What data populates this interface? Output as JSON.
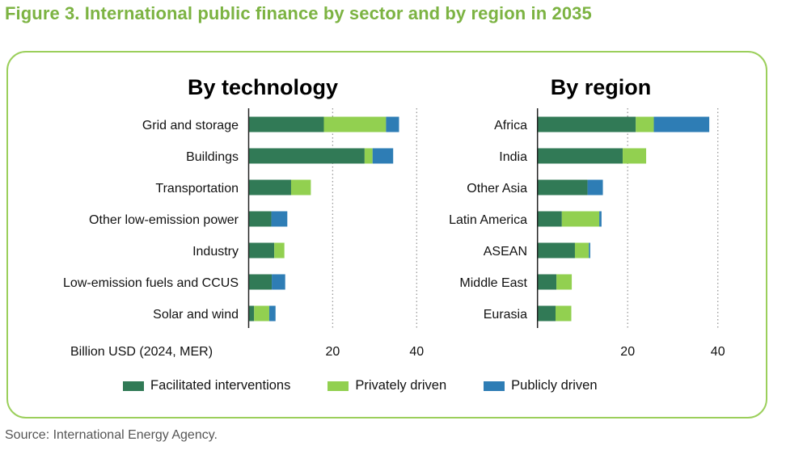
{
  "figure": {
    "title": "Figure 3. International public finance by sector and by region in 2035",
    "source": "Source: International Energy Agency.",
    "colors": {
      "facilitated": "#317a56",
      "private": "#92d050",
      "public": "#2e7db5",
      "title": "#7cb342",
      "frame": "#9bcf5b"
    }
  },
  "legend": [
    {
      "key": "facilitated",
      "label": "Facilitated interventions"
    },
    {
      "key": "private",
      "label": "Privately driven"
    },
    {
      "key": "public",
      "label": "Publicly driven"
    }
  ],
  "chart_data": [
    {
      "type": "bar",
      "orientation": "horizontal",
      "stacked": true,
      "title": "By technology",
      "xlabel": "Billion USD (2024, MER)",
      "xlim": [
        0,
        40
      ],
      "xticks": [
        20,
        40
      ],
      "grid": "vertical dotted",
      "categories": [
        "Grid and storage",
        "Buildings",
        "Transportation",
        "Other low-emission power",
        "Industry",
        "Low-emission fuels and CCUS",
        "Solar and wind"
      ],
      "series": [
        {
          "name": "Facilitated interventions",
          "key": "facilitated",
          "values": [
            17.9,
            27.6,
            10.1,
            5.4,
            6.1,
            5.5,
            1.3
          ]
        },
        {
          "name": "Privately driven",
          "key": "private",
          "values": [
            14.8,
            1.9,
            4.7,
            0.0,
            2.4,
            0.0,
            3.6
          ]
        },
        {
          "name": "Publicly driven",
          "key": "public",
          "values": [
            3.1,
            4.9,
            0.0,
            3.8,
            0.0,
            3.2,
            1.5
          ]
        }
      ]
    },
    {
      "type": "bar",
      "orientation": "horizontal",
      "stacked": true,
      "title": "By region",
      "xlabel": "",
      "xlim": [
        0,
        40
      ],
      "xticks": [
        20,
        40
      ],
      "grid": "vertical dotted",
      "categories": [
        "Africa",
        "India",
        "Other Asia",
        "Latin America",
        "ASEAN",
        "Middle East",
        "Eurasia"
      ],
      "series": [
        {
          "name": "Facilitated interventions",
          "key": "facilitated",
          "values": [
            21.8,
            18.9,
            11.1,
            5.4,
            8.3,
            4.2,
            4.0
          ]
        },
        {
          "name": "Privately driven",
          "key": "private",
          "values": [
            4.0,
            5.2,
            0.0,
            8.3,
            3.1,
            3.4,
            3.5
          ]
        },
        {
          "name": "Publicly driven",
          "key": "public",
          "values": [
            12.3,
            0.0,
            3.4,
            0.5,
            0.3,
            0.0,
            0.0
          ]
        }
      ]
    }
  ]
}
